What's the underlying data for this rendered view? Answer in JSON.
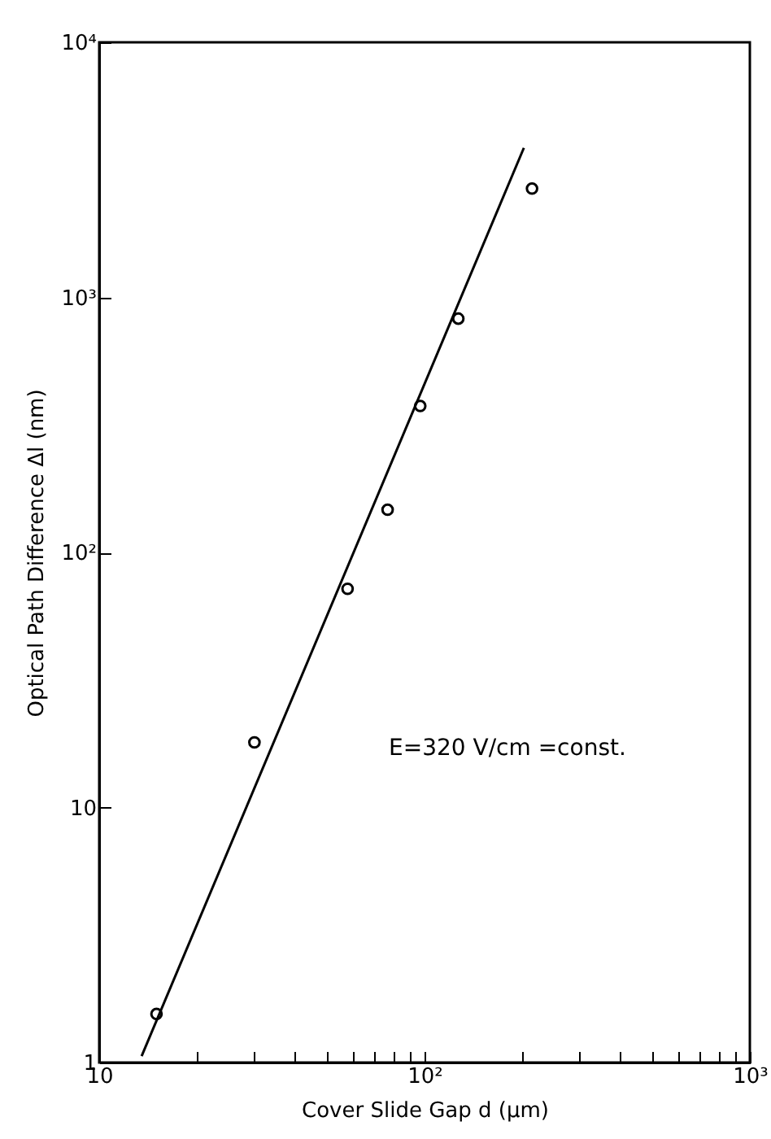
{
  "chart_data": {
    "type": "scatter",
    "xlabel": "Cover Slide Gap d (μm)",
    "ylabel": "Optical Path Difference Δl (nm)",
    "log": "xy",
    "grid": false,
    "xlim": [
      10,
      1000
    ],
    "ylim": [
      1,
      10000
    ],
    "xticks": [
      10,
      {
        "value": 20,
        "label": null
      },
      {
        "value": 30,
        "label": null
      },
      {
        "value": 40,
        "label": null
      },
      {
        "value": 50,
        "label": null
      },
      {
        "value": 60,
        "label": null
      },
      {
        "value": 70,
        "label": null
      },
      {
        "value": 80,
        "label": null
      },
      {
        "value": 90,
        "label": null
      },
      {
        "value": 100,
        "label": "10²"
      },
      {
        "value": 200,
        "label": null
      },
      {
        "value": 300,
        "label": null
      },
      {
        "value": 400,
        "label": null
      },
      {
        "value": 500,
        "label": null
      },
      {
        "value": 600,
        "label": null
      },
      {
        "value": 700,
        "label": null
      },
      {
        "value": 800,
        "label": null
      },
      {
        "value": 900,
        "label": null
      },
      {
        "value": 1000,
        "label": "10³"
      }
    ],
    "yticks": [
      1,
      10,
      {
        "value": 100,
        "label": "10²"
      },
      {
        "value": 1000,
        "label": "10³"
      },
      {
        "value": 10000,
        "label": "10⁴"
      }
    ],
    "annotations": [
      "E=320 V/cm =const."
    ],
    "series": [
      {
        "type": "scatter",
        "marker": "circle",
        "color": "#000000",
        "x": [
          15,
          30,
          58,
          77,
          97,
          127,
          214
        ],
        "values": [
          1.55,
          18,
          72,
          147,
          375,
          825,
          2670
        ]
      },
      {
        "type": "line",
        "line_style": "solid",
        "color": "#000000",
        "x": [
          13.5,
          202
        ],
        "values": [
          1.06,
          3855
        ]
      }
    ]
  }
}
